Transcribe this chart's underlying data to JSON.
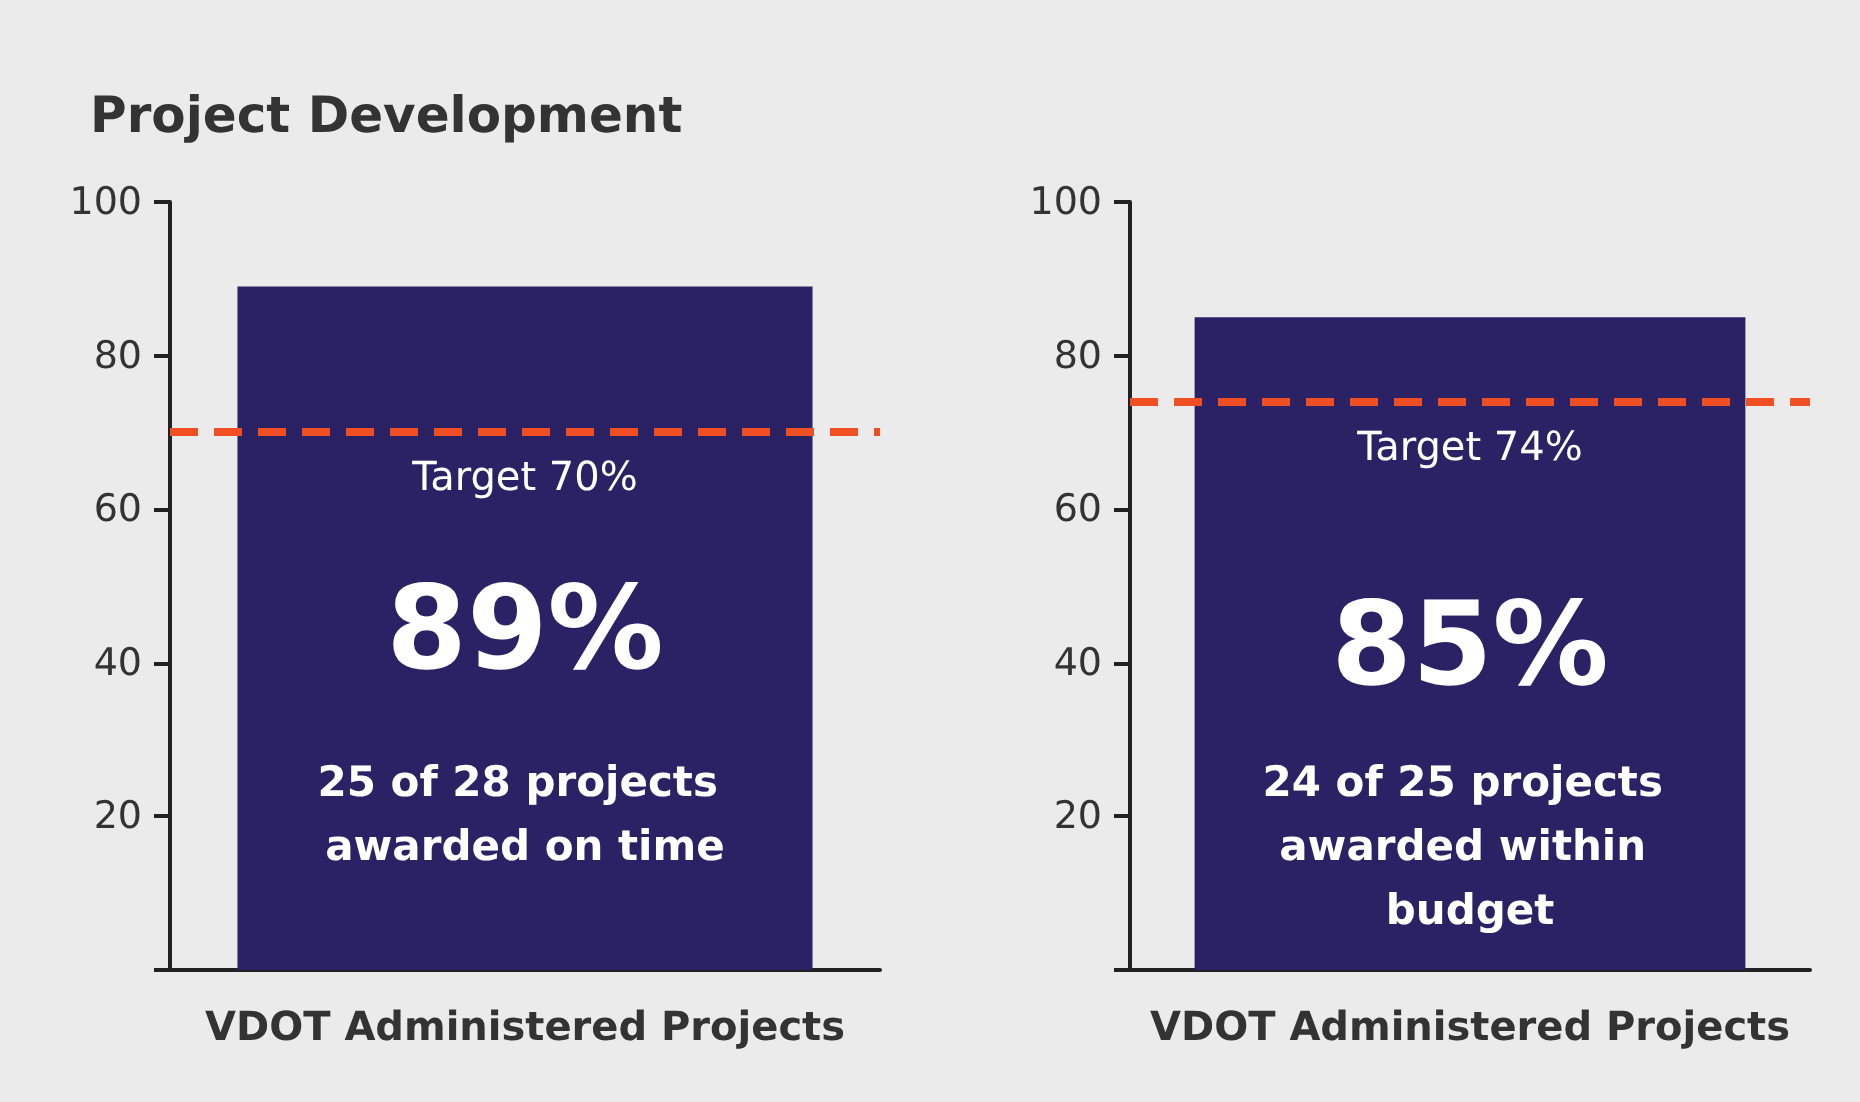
{
  "chart_data": [
    {
      "type": "bar",
      "title": "Project Development",
      "categories": [
        "VDOT Administered Projects"
      ],
      "values": [
        89
      ],
      "value_labels": [
        "89%"
      ],
      "color": "#2b2265",
      "annotations": [
        "25 of 28 projects awarded on time"
      ],
      "ref_lines": [
        {
          "axis": "y",
          "value": 70,
          "label": "Target 70%",
          "color": "#f04e23",
          "line_style": "dashed"
        }
      ],
      "ylim": [
        0,
        100
      ],
      "yticks": [
        {
          "value": 0,
          "label": null
        },
        20,
        40,
        60,
        80,
        100
      ],
      "grid": false
    },
    {
      "type": "bar",
      "categories": [
        "VDOT Administered Projects"
      ],
      "values": [
        85
      ],
      "value_labels": [
        "85%"
      ],
      "color": "#2b2265",
      "annotations": [
        "24 of 25 projects awarded within budget"
      ],
      "ref_lines": [
        {
          "axis": "y",
          "value": 74,
          "label": "Target 74%",
          "color": "#f04e23",
          "line_style": "dashed"
        }
      ],
      "ylim": [
        0,
        100
      ],
      "yticks": [
        {
          "value": 0,
          "label": null
        },
        20,
        40,
        60,
        80,
        100
      ],
      "grid": false
    }
  ]
}
